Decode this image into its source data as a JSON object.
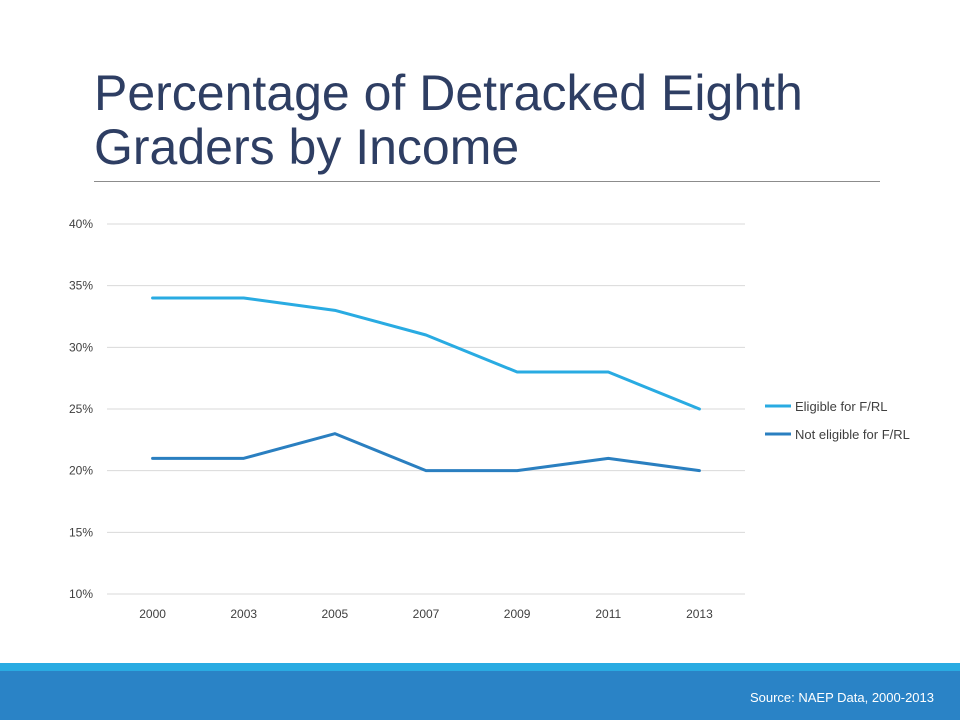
{
  "slide": {
    "title": "Percentage of Detracked Eighth Graders by Income",
    "source": "Source: NAEP Data, 2000-2013"
  },
  "colors": {
    "title": "#2e3e63",
    "bar_light": "#29abe2",
    "bar_dark": "#2a83c6"
  },
  "chart_data": {
    "type": "line",
    "title": "",
    "xlabel": "",
    "ylabel": "",
    "categories": [
      "2000",
      "2003",
      "2005",
      "2007",
      "2009",
      "2011",
      "2013"
    ],
    "yticks": [
      "10%",
      "15%",
      "20%",
      "25%",
      "30%",
      "35%",
      "40%"
    ],
    "ylim": [
      10,
      40
    ],
    "grid": true,
    "legend_position": "right",
    "series": [
      {
        "name": "Eligible for F/RL",
        "values": [
          34,
          34,
          33,
          31,
          28,
          28,
          25
        ],
        "color": "#29abe2"
      },
      {
        "name": "Not eligible for F/RL",
        "values": [
          21,
          21,
          23,
          20,
          20,
          21,
          20
        ],
        "color": "#2a7fc0"
      }
    ]
  }
}
